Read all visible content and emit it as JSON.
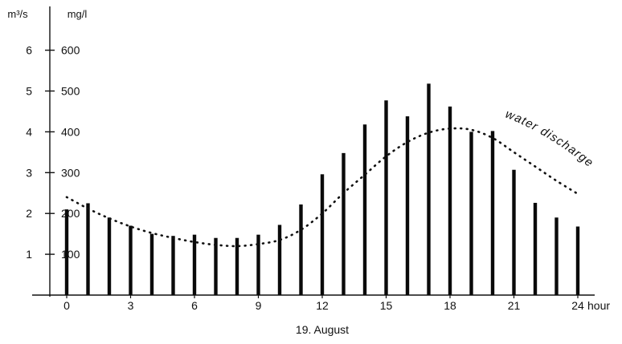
{
  "chart_data": {
    "type": "bar",
    "title": "",
    "xlabel": "19. August",
    "x_unit": "hour",
    "y_left_unit": "m³/s",
    "y_right_unit": "mg/l",
    "y_left_range": [
      0,
      7
    ],
    "y_right_range": [
      0,
      700
    ],
    "x_range": [
      0,
      24
    ],
    "grid": false,
    "x_ticks": [
      0,
      3,
      6,
      9,
      12,
      15,
      18,
      21,
      24
    ],
    "x_tick_labels": [
      "0",
      "3",
      "6",
      "9",
      "12",
      "15",
      "18",
      "21",
      "24"
    ],
    "y_left_ticks": [
      1,
      2,
      3,
      4,
      5,
      6
    ],
    "y_left_tick_labels": [
      "1",
      "2",
      "3",
      "4",
      "5",
      "6"
    ],
    "y_right_ticks": [
      100,
      200,
      300,
      400,
      500,
      600
    ],
    "y_right_tick_labels": [
      "100",
      "200",
      "300",
      "400",
      "500",
      "600"
    ],
    "series": [
      {
        "style": "bars",
        "axis": "right",
        "x": [
          0,
          1,
          2,
          3,
          4,
          5,
          6,
          7,
          8,
          9,
          10,
          11,
          12,
          13,
          14,
          15,
          16,
          17,
          18,
          19,
          20,
          21,
          22,
          23,
          24
        ],
        "values": [
          210,
          225,
          190,
          170,
          150,
          145,
          148,
          140,
          140,
          148,
          172,
          222,
          296,
          348,
          418,
          477,
          438,
          518,
          462,
          400,
          402,
          307,
          226,
          190,
          168
        ]
      },
      {
        "name": "water discharge",
        "style": "dotted-line",
        "axis": "left",
        "x": [
          0,
          1,
          2,
          3,
          4,
          5,
          6,
          7,
          8,
          9,
          10,
          11,
          12,
          13,
          14,
          15,
          16,
          17,
          18,
          19,
          20,
          21,
          22,
          23,
          24
        ],
        "values": [
          2.4,
          2.12,
          1.88,
          1.68,
          1.52,
          1.4,
          1.3,
          1.23,
          1.2,
          1.25,
          1.35,
          1.6,
          2.0,
          2.5,
          2.95,
          3.4,
          3.75,
          3.98,
          4.08,
          4.05,
          3.85,
          3.5,
          3.15,
          2.8,
          2.48
        ]
      }
    ],
    "annotation": "water discharge"
  }
}
